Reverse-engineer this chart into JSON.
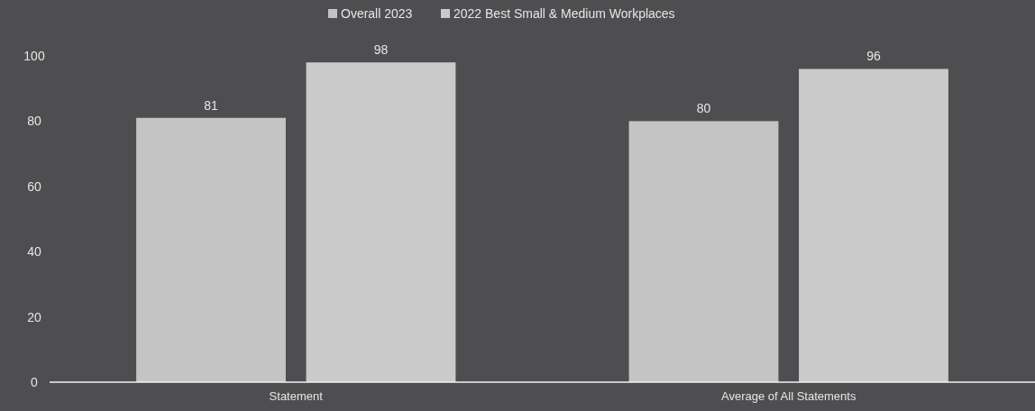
{
  "chart_data": {
    "type": "bar",
    "categories": [
      "Statement",
      "Average of All Statements"
    ],
    "series": [
      {
        "name": "Overall 2023",
        "color": "#c4c4c4",
        "values": [
          81,
          80
        ]
      },
      {
        "name": "2022 Best Small & Medium Workplaces",
        "color": "#cacaca",
        "values": [
          98,
          96
        ]
      }
    ],
    "ylim": [
      0,
      100
    ],
    "yticks": [
      0,
      20,
      40,
      60,
      80,
      100
    ],
    "grid": false,
    "legend": "top",
    "data_labels": true
  }
}
